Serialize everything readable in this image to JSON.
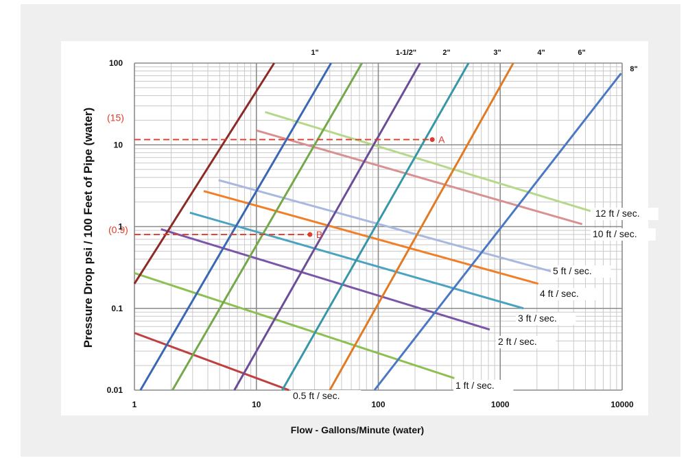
{
  "chart_data": {
    "type": "line",
    "xlabel": "Flow - Gallons/Minute (water)",
    "ylabel": "Pressure Drop psi / 100 Feet of Pipe (water)",
    "x_scale": "log",
    "y_scale": "log",
    "xlim": [
      1,
      10000
    ],
    "ylim": [
      0.01,
      100
    ],
    "x_ticks": [
      "1",
      "10",
      "100",
      "1000",
      "10000"
    ],
    "y_ticks": [
      "0.01",
      "0.1",
      "1",
      "10",
      "100"
    ],
    "grid": true,
    "pipe_series": [
      {
        "name": "1\"",
        "color": "#8b2a26",
        "points": [
          [
            1,
            0.2
          ],
          [
            14,
            100
          ]
        ]
      },
      {
        "name": "1-1/2\"",
        "color": "#3a67b3",
        "points": [
          [
            1.12,
            0.01
          ],
          [
            41,
            100
          ]
        ]
      },
      {
        "name": "2\"",
        "color": "#74a84a",
        "points": [
          [
            2.05,
            0.01
          ],
          [
            73.5,
            100
          ]
        ]
      },
      {
        "name": "3\"",
        "color": "#6a4d96",
        "points": [
          [
            6.6,
            0.01
          ],
          [
            220,
            100
          ]
        ]
      },
      {
        "name": "4\"",
        "color": "#3797a6",
        "points": [
          [
            16.3,
            0.01
          ],
          [
            550,
            100
          ]
        ]
      },
      {
        "name": "6\"",
        "color": "#e07a25",
        "points": [
          [
            40,
            0.01
          ],
          [
            1280,
            100
          ]
        ]
      },
      {
        "name": "8\"",
        "color": "#4a78c2",
        "points": [
          [
            93,
            0.01
          ],
          [
            9800,
            75
          ]
        ]
      }
    ],
    "velocity_series": [
      {
        "name": "0.5 ft / sec.",
        "color": "#c04040",
        "points": [
          [
            1,
            0.05
          ],
          [
            18.5,
            0.01
          ]
        ]
      },
      {
        "name": "1 ft / sec.",
        "color": "#8cc050",
        "points": [
          [
            1,
            0.27
          ],
          [
            420,
            0.014
          ]
        ]
      },
      {
        "name": "2 ft / sec.",
        "color": "#7a55a8",
        "points": [
          [
            1.65,
            0.93
          ],
          [
            820,
            0.055
          ]
        ]
      },
      {
        "name": "3 ft / sec.",
        "color": "#4aa3c0",
        "points": [
          [
            2.85,
            1.48
          ],
          [
            1550,
            0.1
          ]
        ]
      },
      {
        "name": "4 ft / sec.",
        "color": "#f07f28",
        "points": [
          [
            3.7,
            2.72
          ],
          [
            2050,
            0.2
          ]
        ]
      },
      {
        "name": "5 ft / sec.",
        "color": "#a8b8e0",
        "points": [
          [
            4.9,
            3.7
          ],
          [
            2700,
            0.28
          ]
        ]
      },
      {
        "name": "10 ft / sec.",
        "color": "#d99090",
        "points": [
          [
            10,
            15
          ],
          [
            4700,
            1.07
          ]
        ]
      },
      {
        "name": "12 ft / sec.",
        "color": "#b5d88a",
        "points": [
          [
            11.8,
            25.2
          ],
          [
            5500,
            1.55
          ]
        ]
      }
    ],
    "annotations": [
      {
        "label": "A",
        "x": 277,
        "y": 11.6,
        "y_label": "(15)"
      },
      {
        "label": "B",
        "x": 27.5,
        "y": 0.8,
        "y_label": "(0.9)"
      }
    ]
  },
  "colors": {
    "panel_bg": "#efefef",
    "plot_bg": "#ffffff",
    "grid_minor": "#c9c9c9",
    "grid_major": "#8a8a8a",
    "marker": "#e03a2a"
  }
}
